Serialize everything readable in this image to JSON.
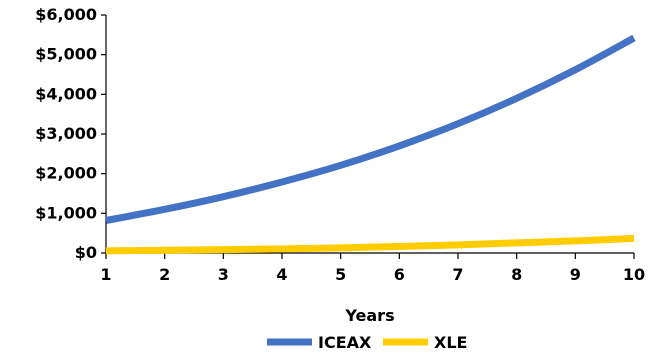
{
  "chart_data": {
    "type": "line",
    "title": "",
    "xlabel": "Years",
    "ylabel": "",
    "x": [
      1,
      2,
      3,
      4,
      5,
      6,
      7,
      8,
      9,
      10
    ],
    "xlim": [
      1,
      10
    ],
    "ylim": [
      0,
      6000
    ],
    "x_ticks": [
      "1",
      "2",
      "3",
      "4",
      "5",
      "6",
      "7",
      "8",
      "9",
      "10"
    ],
    "y_ticks": [
      0,
      1000,
      2000,
      3000,
      4000,
      5000,
      6000
    ],
    "y_tick_labels": [
      "$0",
      "$1,000",
      "$2,000",
      "$3,000",
      "$4,000",
      "$5,000",
      "$6,000"
    ],
    "grid": false,
    "legend_position": "bottom",
    "series": [
      {
        "name": "ICEAX",
        "color": "#4472C4",
        "values": [
          820,
          1100,
          1420,
          1790,
          2210,
          2700,
          3260,
          3900,
          4620,
          5420
        ]
      },
      {
        "name": "XLE",
        "color": "#FFCC00",
        "values": [
          55,
          70,
          85,
          105,
          130,
          165,
          205,
          255,
          305,
          370
        ]
      }
    ]
  }
}
